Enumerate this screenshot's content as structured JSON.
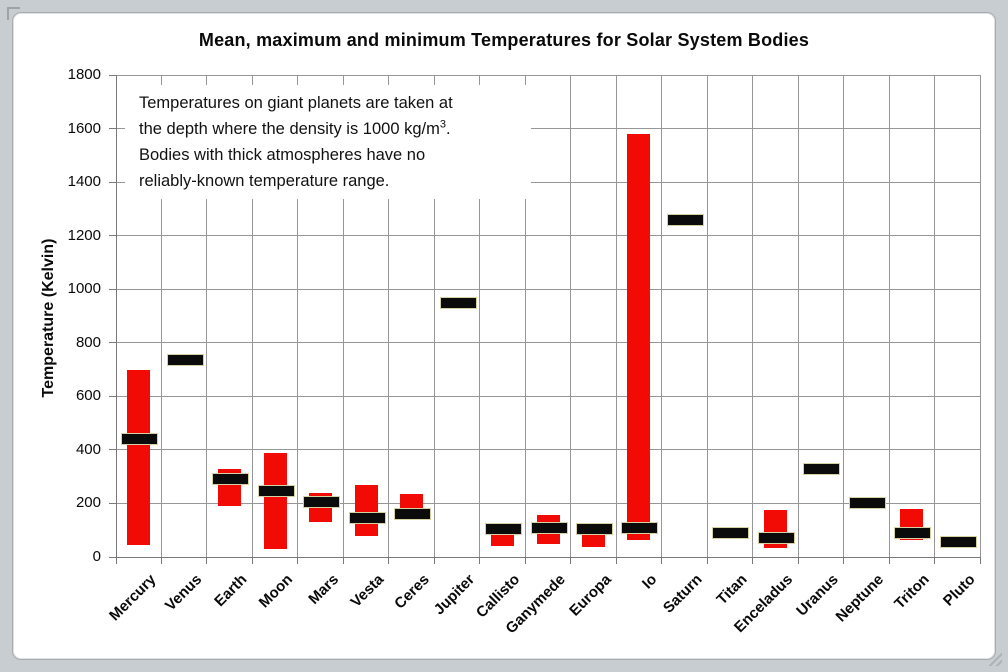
{
  "window": {
    "background_color": "#c8cdd1",
    "canvas_color": "#ffffff"
  },
  "chart_data": {
    "type": "bar",
    "subtype": "floating-range-bars-with-mean-markers",
    "title": "Mean, maximum and minimum Temperatures for Solar System Bodies",
    "xlabel": "",
    "ylabel": "Temperature (Kelvin)",
    "ylim": [
      0,
      1800
    ],
    "ytick_step": 200,
    "grid": "horizontal-and-vertical",
    "legend": "none",
    "annotation": {
      "line1": "Temperatures on giant planets are taken at",
      "line2_pre": "the depth where the density is 1000 kg/m",
      "line2_sup": "3",
      "line2_post": ".",
      "line3": "Bodies with thick atmospheres have no",
      "line4": "reliably-known temperature range."
    },
    "categories": [
      "Mercury",
      "Venus",
      "Earth",
      "Moon",
      "Mars",
      "Vesta",
      "Ceres",
      "Jupiter",
      "Callisto",
      "Ganymede",
      "Europa",
      "Io",
      "Saturn",
      "Titan",
      "Enceladus",
      "Uranus",
      "Neptune",
      "Triton",
      "Pluto"
    ],
    "series": [
      {
        "name": "minimum",
        "values": [
          45,
          null,
          190,
          30,
          130,
          80,
          140,
          null,
          40,
          50,
          38,
          65,
          null,
          null,
          33,
          null,
          null,
          65,
          40
        ]
      },
      {
        "name": "mean",
        "values": [
          440,
          735,
          290,
          248,
          205,
          147,
          160,
          950,
          105,
          110,
          105,
          110,
          1260,
          90,
          72,
          330,
          200,
          90,
          57
        ]
      },
      {
        "name": "maximum",
        "values": [
          700,
          null,
          330,
          390,
          240,
          270,
          237,
          null,
          125,
          155,
          120,
          1580,
          null,
          null,
          175,
          null,
          null,
          178,
          62
        ]
      }
    ],
    "colors": {
      "range_bar": "#f20b04",
      "mean_marker": "#0b0b0b",
      "mean_marker_outline": "#d6d1a2",
      "gridline": "#969696",
      "axis_line": "#7a7a7a"
    }
  }
}
